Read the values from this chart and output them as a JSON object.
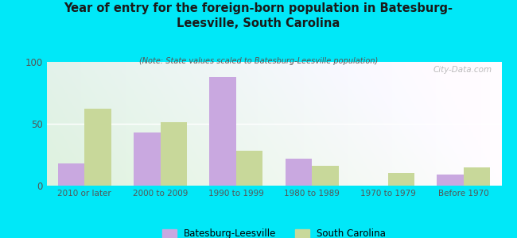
{
  "title": "Year of entry for the foreign-born population in Batesburg-\nLeesville, South Carolina",
  "subtitle": "(Note: State values scaled to Batesburg-Leesville population)",
  "categories": [
    "2010 or later",
    "2000 to 2009",
    "1990 to 1999",
    "1980 to 1989",
    "1970 to 1979",
    "Before 1970"
  ],
  "batesburg_values": [
    18,
    43,
    88,
    22,
    0,
    9
  ],
  "sc_values": [
    62,
    51,
    28,
    16,
    10,
    15
  ],
  "ylim": [
    0,
    100
  ],
  "yticks": [
    0,
    50,
    100
  ],
  "bar_color_batesburg": "#c9a8e0",
  "bar_color_sc": "#c8d89a",
  "background_outer": "#00e8f8",
  "bar_width": 0.35,
  "legend_labels": [
    "Batesburg-Leesville",
    "South Carolina"
  ],
  "watermark": "City-Data.com"
}
